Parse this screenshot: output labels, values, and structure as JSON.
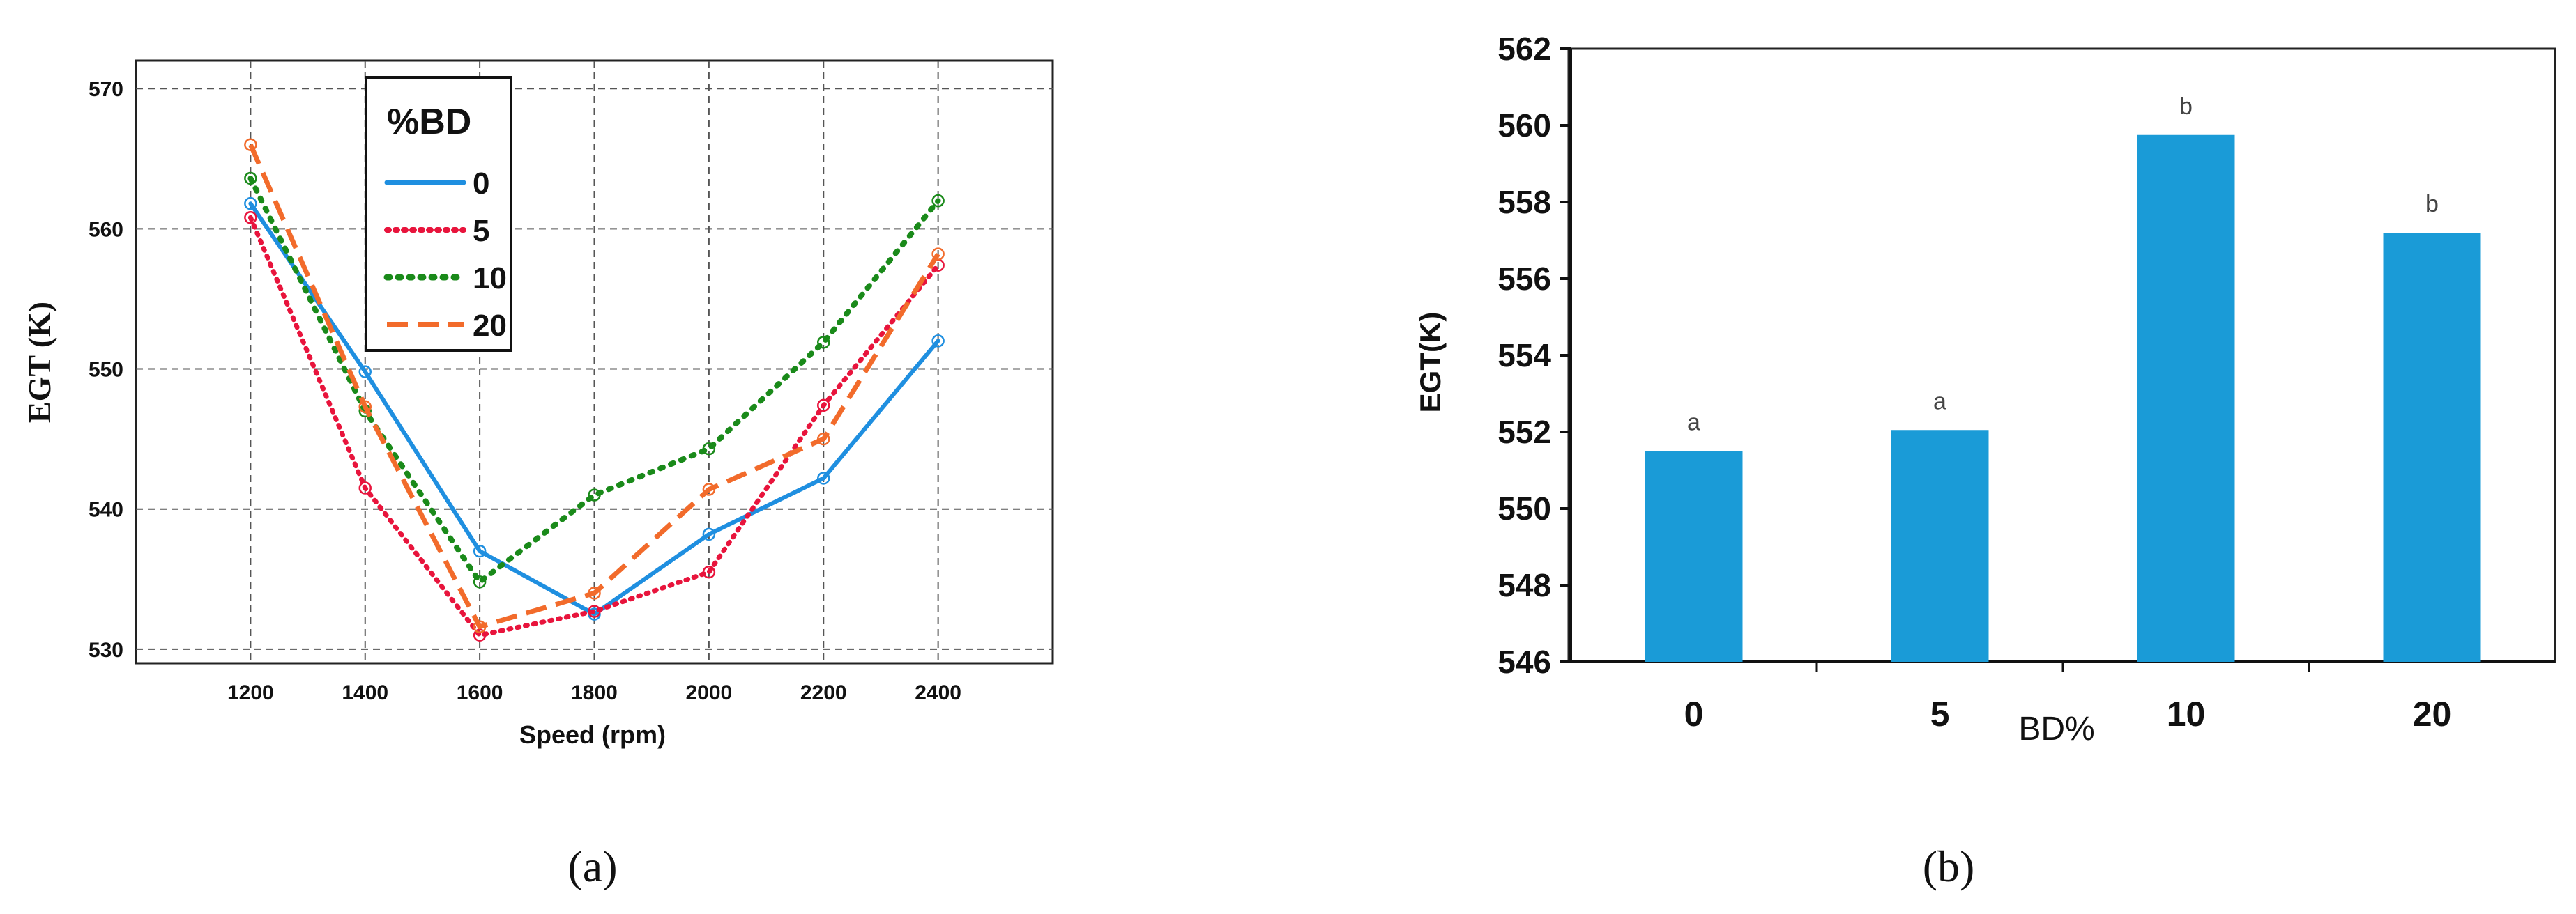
{
  "figure": {
    "panel_a_label": "(a)",
    "panel_b_label": "(b)"
  },
  "chart_data": [
    {
      "type": "line",
      "xlabel": "Speed (rpm)",
      "ylabel": "EGT (K)",
      "x": [
        1200,
        1400,
        1600,
        1800,
        2000,
        2200,
        2400
      ],
      "xlim": [
        1000,
        2600
      ],
      "ylim": [
        529,
        572
      ],
      "xticks": [
        "1200",
        "1400",
        "1600",
        "1800",
        "2000",
        "2200",
        "2400"
      ],
      "yticks": [
        "530",
        "540",
        "550",
        "560",
        "570"
      ],
      "grid": true,
      "legend": {
        "title": "%BD",
        "placement": "top-left"
      },
      "series": [
        {
          "name": "0",
          "color": "#1f8fe0",
          "style": "solid",
          "values": [
            561.8,
            549.8,
            537.0,
            532.5,
            538.2,
            542.2,
            552.0
          ]
        },
        {
          "name": "5",
          "color": "#e8143c",
          "style": "dotted",
          "values": [
            560.8,
            541.5,
            531.0,
            532.7,
            535.5,
            547.4,
            557.4
          ]
        },
        {
          "name": "10",
          "color": "#1a8a1a",
          "style": "dotted-bold",
          "values": [
            563.6,
            547.0,
            534.8,
            541.0,
            544.3,
            551.9,
            562.0
          ]
        },
        {
          "name": "20",
          "color": "#f26b2b",
          "style": "dashed",
          "values": [
            566.0,
            547.3,
            531.6,
            534.0,
            541.4,
            545.0,
            558.2
          ]
        }
      ]
    },
    {
      "type": "bar",
      "xlabel": "BD%",
      "ylabel": "EGT(K)",
      "categories": [
        "0",
        "5",
        "10",
        "20"
      ],
      "values": [
        551.5,
        552.05,
        559.75,
        557.2
      ],
      "bar_labels": [
        "a",
        "a",
        "b",
        "b"
      ],
      "ylim": [
        546,
        562
      ],
      "yticks": [
        "546",
        "548",
        "550",
        "552",
        "554",
        "556",
        "558",
        "560",
        "562"
      ],
      "grid": false,
      "color": "#1a9bd7"
    }
  ]
}
